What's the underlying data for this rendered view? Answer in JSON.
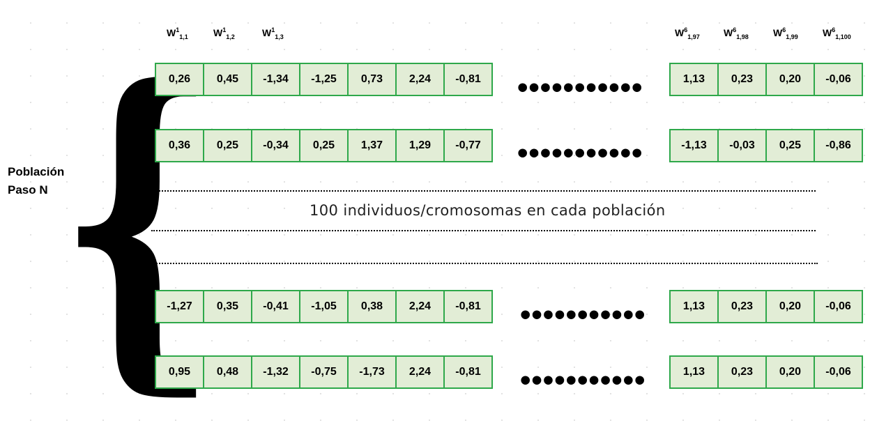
{
  "headers_left": [
    {
      "base": "W",
      "sup": "1",
      "sub": "1,1"
    },
    {
      "base": "W",
      "sup": "1",
      "sub": "1,2"
    },
    {
      "base": "W",
      "sup": "1",
      "sub": "1,3"
    }
  ],
  "headers_right": [
    {
      "base": "W",
      "sup": "6",
      "sub": "1,97"
    },
    {
      "base": "W",
      "sup": "6",
      "sub": "1,98"
    },
    {
      "base": "W",
      "sup": "6",
      "sub": "1,99"
    },
    {
      "base": "W",
      "sup": "6",
      "sub": "1,100"
    }
  ],
  "population_label": {
    "line1": "Población",
    "line2": "Paso N"
  },
  "brace_glyph": "{",
  "ellipsis": "•••••••••••",
  "middle_text": "100 individuos/cromosomas en cada población",
  "rows": [
    {
      "left": [
        "0,26",
        "0,45",
        "-1,34",
        "-1,25",
        "0,73",
        "2,24",
        "-0,81"
      ],
      "right": [
        "1,13",
        "0,23",
        "0,20",
        "-0,06"
      ]
    },
    {
      "left": [
        "0,36",
        "0,25",
        "-0,34",
        "0,25",
        "1,37",
        "1,29",
        "-0,77"
      ],
      "right": [
        "-1,13",
        "-0,03",
        "0,25",
        "-0,86"
      ]
    },
    {
      "left": [
        "-1,27",
        "0,35",
        "-0,41",
        "-1,05",
        "0,38",
        "2,24",
        "-0,81"
      ],
      "right": [
        "1,13",
        "0,23",
        "0,20",
        "-0,06"
      ]
    },
    {
      "left": [
        "0,95",
        "0,48",
        "-1,32",
        "-0,75",
        "-1,73",
        "2,24",
        "-0,81"
      ],
      "right": [
        "1,13",
        "0,23",
        "0,20",
        "-0,06"
      ]
    }
  ],
  "colors": {
    "cell_fill": "#e2edd6",
    "cell_border": "#2ea84a"
  }
}
